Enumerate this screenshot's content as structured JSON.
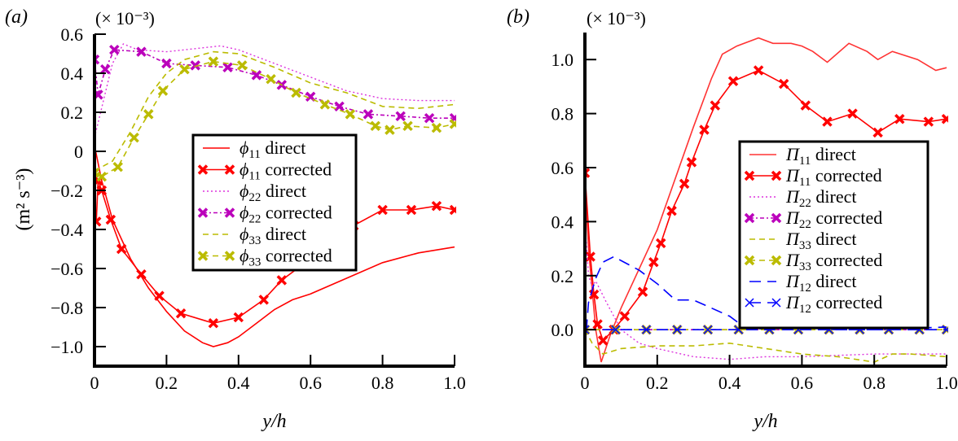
{
  "chart_data": [
    {
      "panel_label": "(a)",
      "type": "line",
      "multiplier": "(× 10⁻³)",
      "xlabel": "y/h",
      "ylabel": "(m² s⁻³)",
      "xlim": [
        0,
        1.0
      ],
      "ylim": [
        -1.1,
        0.6
      ],
      "xticks": [
        "0",
        "0.2",
        "0.4",
        "0.6",
        "0.8",
        "1.0"
      ],
      "yticks": [
        "−1.0",
        "−0.8",
        "−0.6",
        "−0.4",
        "−0.2",
        "0",
        "0.2",
        "0.4",
        "0.6"
      ],
      "ytick_values": [
        -1.0,
        -0.8,
        -0.6,
        -0.4,
        -0.2,
        0,
        0.2,
        0.4,
        0.6
      ],
      "legend_position": "center-right",
      "series": [
        {
          "symbol": "ϕ",
          "sub": "11",
          "name": "direct",
          "color": "#ff0000",
          "style": "solid",
          "marker": "none",
          "x": [
            0,
            0.02,
            0.05,
            0.1,
            0.15,
            0.2,
            0.25,
            0.3,
            0.33,
            0.37,
            0.4,
            0.45,
            0.5,
            0.55,
            0.6,
            0.7,
            0.8,
            0.9,
            1.0
          ],
          "y": [
            0.03,
            -0.15,
            -0.35,
            -0.55,
            -0.7,
            -0.82,
            -0.92,
            -0.98,
            -1.0,
            -0.98,
            -0.95,
            -0.88,
            -0.81,
            -0.76,
            -0.73,
            -0.65,
            -0.57,
            -0.52,
            -0.49
          ]
        },
        {
          "symbol": "ϕ",
          "sub": "11",
          "name": "corrected",
          "color": "#ff0000",
          "style": "solid",
          "marker": "bold-x",
          "x": [
            0.005,
            0.01,
            0.02,
            0.045,
            0.075,
            0.13,
            0.18,
            0.24,
            0.33,
            0.4,
            0.47,
            0.52,
            0.6,
            0.65,
            0.72,
            0.8,
            0.88,
            0.95,
            1.0
          ],
          "y": [
            -0.36,
            -0.15,
            -0.2,
            -0.35,
            -0.5,
            -0.63,
            -0.74,
            -0.83,
            -0.88,
            -0.85,
            -0.76,
            -0.66,
            -0.55,
            -0.47,
            -0.38,
            -0.3,
            -0.3,
            -0.28,
            -0.3
          ]
        },
        {
          "symbol": "ϕ",
          "sub": "22",
          "name": "direct",
          "color": "#dd33dd",
          "style": "dotted",
          "marker": "none",
          "x": [
            0,
            0.03,
            0.05,
            0.08,
            0.12,
            0.2,
            0.3,
            0.35,
            0.4,
            0.5,
            0.6,
            0.7,
            0.8,
            0.9,
            1.0
          ],
          "y": [
            0.07,
            0.3,
            0.45,
            0.55,
            0.52,
            0.51,
            0.53,
            0.54,
            0.52,
            0.45,
            0.38,
            0.31,
            0.27,
            0.26,
            0.26
          ]
        },
        {
          "symbol": "ϕ",
          "sub": "22",
          "name": "corrected",
          "color": "#bb00bb",
          "style": "dashdot",
          "marker": "bold-x",
          "x": [
            0,
            0.01,
            0.03,
            0.055,
            0.13,
            0.2,
            0.28,
            0.37,
            0.45,
            0.52,
            0.6,
            0.68,
            0.76,
            0.85,
            0.93,
            1.0
          ],
          "y": [
            0.47,
            0.29,
            0.42,
            0.52,
            0.51,
            0.45,
            0.44,
            0.43,
            0.39,
            0.34,
            0.28,
            0.23,
            0.19,
            0.18,
            0.17,
            0.17
          ]
        },
        {
          "symbol": "ϕ",
          "sub": "33",
          "name": "direct",
          "color": "#bbbb00",
          "style": "dashed",
          "marker": "none",
          "x": [
            0,
            0.05,
            0.1,
            0.15,
            0.2,
            0.25,
            0.33,
            0.4,
            0.5,
            0.6,
            0.7,
            0.8,
            0.9,
            1.0
          ],
          "y": [
            -0.1,
            -0.05,
            0.1,
            0.28,
            0.4,
            0.47,
            0.51,
            0.5,
            0.43,
            0.35,
            0.3,
            0.23,
            0.22,
            0.24
          ]
        },
        {
          "symbol": "ϕ",
          "sub": "33",
          "name": "corrected",
          "color": "#bbbb00",
          "style": "dashed",
          "marker": "bold-x",
          "x": [
            0,
            0.02,
            0.065,
            0.11,
            0.15,
            0.19,
            0.25,
            0.33,
            0.41,
            0.49,
            0.56,
            0.64,
            0.71,
            0.78,
            0.82,
            0.87,
            0.95,
            1.0
          ],
          "y": [
            -0.11,
            -0.13,
            -0.08,
            0.07,
            0.19,
            0.31,
            0.42,
            0.46,
            0.44,
            0.37,
            0.3,
            0.24,
            0.19,
            0.13,
            0.11,
            0.13,
            0.12,
            0.14
          ]
        }
      ]
    },
    {
      "panel_label": "(b)",
      "type": "line",
      "multiplier": "(× 10⁻³)",
      "xlabel": "y/h",
      "ylabel": "",
      "xlim": [
        0,
        1.0
      ],
      "ylim": [
        -0.135,
        1.1
      ],
      "xticks": [
        "0",
        "0.2",
        "0.4",
        "0.6",
        "0.8",
        "1.0"
      ],
      "yticks": [
        "0.0",
        "0.2",
        "0.4",
        "0.6",
        "0.8",
        "1.0"
      ],
      "ytick_values": [
        0,
        0.2,
        0.4,
        0.6,
        0.8,
        1.0
      ],
      "legend_position": "center-right",
      "series": [
        {
          "symbol": "Π",
          "sub": "11",
          "name": "direct",
          "color": "#ff3333",
          "style": "solid",
          "marker": "none",
          "x": [
            0,
            0.01,
            0.03,
            0.045,
            0.07,
            0.1,
            0.2,
            0.3,
            0.35,
            0.38,
            0.42,
            0.48,
            0.52,
            0.57,
            0.6,
            0.63,
            0.67,
            0.73,
            0.78,
            0.81,
            0.85,
            0.92,
            0.97,
            1.0
          ],
          "y": [
            0.58,
            0.3,
            0.0,
            -0.12,
            -0.02,
            0.08,
            0.37,
            0.75,
            0.93,
            1.02,
            1.05,
            1.08,
            1.06,
            1.06,
            1.05,
            1.03,
            0.99,
            1.06,
            1.03,
            1.0,
            1.03,
            1.0,
            0.96,
            0.97
          ]
        },
        {
          "symbol": "Π",
          "sub": "11",
          "name": "corrected",
          "color": "#ff0000",
          "style": "solid",
          "marker": "bold-x",
          "x": [
            0,
            0.015,
            0.025,
            0.035,
            0.05,
            0.08,
            0.11,
            0.16,
            0.19,
            0.21,
            0.24,
            0.275,
            0.295,
            0.33,
            0.36,
            0.41,
            0.48,
            0.55,
            0.61,
            0.67,
            0.74,
            0.81,
            0.87,
            0.95,
            1.0
          ],
          "y": [
            0.58,
            0.27,
            0.13,
            0.02,
            -0.04,
            0.0,
            0.05,
            0.14,
            0.25,
            0.32,
            0.44,
            0.54,
            0.62,
            0.74,
            0.83,
            0.92,
            0.96,
            0.91,
            0.83,
            0.77,
            0.8,
            0.73,
            0.78,
            0.77,
            0.78
          ]
        },
        {
          "symbol": "Π",
          "sub": "22",
          "name": "direct",
          "color": "#dd33dd",
          "style": "dotted",
          "marker": "none",
          "x": [
            0,
            0.01,
            0.02,
            0.03,
            0.06,
            0.1,
            0.15,
            0.2,
            0.3,
            0.4,
            0.5,
            0.6,
            0.8,
            1.0
          ],
          "y": [
            0.4,
            0.2,
            0.16,
            0.18,
            0.1,
            0.0,
            -0.05,
            -0.07,
            -0.1,
            -0.11,
            -0.1,
            -0.1,
            -0.09,
            -0.09
          ]
        },
        {
          "symbol": "Π",
          "sub": "22",
          "name": "corrected",
          "color": "#bb00bb",
          "style": "dashdot",
          "marker": "bold-x",
          "x": [
            0,
            0.085,
            0.17,
            0.255,
            0.34,
            0.425,
            0.51,
            0.59,
            0.675,
            0.76,
            0.84,
            0.925,
            1.0
          ],
          "y": [
            0,
            0,
            0,
            0,
            0,
            0,
            0,
            0,
            0,
            0,
            0,
            0,
            0
          ]
        },
        {
          "symbol": "Π",
          "sub": "33",
          "name": "direct",
          "color": "#bbbb00",
          "style": "dashed",
          "marker": "none",
          "x": [
            0,
            0.02,
            0.05,
            0.1,
            0.2,
            0.3,
            0.4,
            0.5,
            0.6,
            0.7,
            0.8,
            0.85,
            0.9,
            1.0
          ],
          "y": [
            0.0,
            -0.05,
            -0.09,
            -0.07,
            -0.06,
            -0.06,
            -0.05,
            -0.07,
            -0.09,
            -0.1,
            -0.12,
            -0.09,
            -0.09,
            -0.1
          ]
        },
        {
          "symbol": "Π",
          "sub": "33",
          "name": "corrected",
          "color": "#bbbb00",
          "style": "dashed",
          "marker": "bold-x",
          "x": [
            0,
            0.085,
            0.17,
            0.255,
            0.34,
            0.425,
            0.51,
            0.59,
            0.675,
            0.76,
            0.84,
            0.925,
            1.0
          ],
          "y": [
            0,
            0,
            0,
            0,
            0,
            0,
            0,
            0,
            0,
            0,
            0,
            0,
            0
          ]
        },
        {
          "symbol": "Π",
          "sub": "12",
          "name": "direct",
          "color": "#0000ff",
          "style": "longdash",
          "marker": "none",
          "x": [
            0,
            0.01,
            0.03,
            0.05,
            0.08,
            0.15,
            0.2,
            0.25,
            0.3,
            0.35,
            0.4,
            0.45,
            0.55,
            0.7,
            0.8,
            1.0
          ],
          "y": [
            -0.07,
            0.1,
            0.19,
            0.25,
            0.27,
            0.22,
            0.17,
            0.11,
            0.11,
            0.08,
            0.05,
            0.0,
            0.01,
            0.0,
            0.0,
            0.01
          ]
        },
        {
          "symbol": "Π",
          "sub": "12",
          "name": "corrected",
          "color": "#0000ff",
          "style": "longdash",
          "marker": "thin-x",
          "x": [
            0,
            0.085,
            0.17,
            0.255,
            0.34,
            0.425,
            0.51,
            0.59,
            0.675,
            0.76,
            0.84,
            0.925,
            1.0
          ],
          "y": [
            0,
            0,
            0,
            0,
            0,
            0,
            0,
            0,
            0,
            0,
            0,
            0,
            0
          ]
        }
      ]
    }
  ]
}
